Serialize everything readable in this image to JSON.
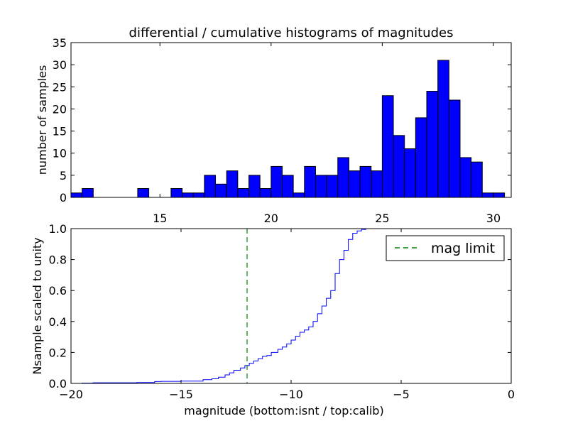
{
  "chart_data": [
    {
      "type": "bar",
      "title": "differential / cumulative histograms of magnitudes",
      "xlabel": "",
      "ylabel": "number of samples",
      "xlim": [
        11.0,
        30.8
      ],
      "ylim": [
        0,
        35
      ],
      "xticks": [
        15,
        20,
        25,
        30
      ],
      "yticks": [
        0,
        5,
        10,
        15,
        20,
        25,
        30,
        35
      ],
      "xaxis_side": "bottom",
      "bin_width": 0.5,
      "bins_start": [
        11.0,
        11.5,
        12.0,
        12.5,
        13.0,
        13.5,
        14.0,
        14.5,
        15.0,
        15.5,
        16.0,
        16.5,
        17.0,
        17.5,
        18.0,
        18.5,
        19.0,
        19.5,
        20.0,
        20.5,
        21.0,
        21.5,
        22.0,
        22.5,
        23.0,
        23.5,
        24.0,
        24.5,
        25.0,
        25.5,
        26.0,
        26.5,
        27.0,
        27.5,
        28.0,
        28.5,
        29.0,
        29.5,
        30.0
      ],
      "values": [
        1,
        2,
        0,
        0,
        0,
        0,
        2,
        0,
        0,
        2,
        1,
        1,
        5,
        3,
        6,
        2,
        5,
        2,
        7,
        5,
        1,
        7,
        5,
        5,
        9,
        6,
        7,
        6,
        23,
        14,
        11,
        18,
        24,
        31,
        22,
        9,
        8,
        1,
        1
      ],
      "bar_color": "#0000ff",
      "grid": false
    },
    {
      "type": "line",
      "step": true,
      "title": "",
      "xlabel": "magnitude (bottom:isnt / top:calib)",
      "ylabel": "Nsample scaled to unity",
      "xlim": [
        -20,
        0
      ],
      "ylim": [
        0.0,
        1.0
      ],
      "xticks": [
        -20,
        -15,
        -10,
        -5,
        0
      ],
      "xtick_labels": [
        "−20",
        "−15",
        "−10",
        "−5",
        "0"
      ],
      "yticks": [
        0.0,
        0.2,
        0.4,
        0.6,
        0.8,
        1.0
      ],
      "ytick_labels": [
        "0.0",
        "0.2",
        "0.4",
        "0.6",
        "0.8",
        "1.0"
      ],
      "series": [
        {
          "color": "#0000ff",
          "x": [
            -20.0,
            -19.5,
            -19.0,
            -18.0,
            -17.0,
            -16.2,
            -15.9,
            -15.0,
            -14.0,
            -13.6,
            -13.3,
            -13.0,
            -12.8,
            -12.6,
            -12.3,
            -12.1,
            -11.9,
            -11.7,
            -11.5,
            -11.3,
            -11.1,
            -10.9,
            -10.6,
            -10.4,
            -10.2,
            -10.0,
            -9.8,
            -9.6,
            -9.4,
            -9.2,
            -9.0,
            -8.8,
            -8.6,
            -8.4,
            -8.2,
            -8.0,
            -7.8,
            -7.6,
            -7.4,
            -7.2,
            -7.0,
            -6.8,
            -6.6,
            0.0
          ],
          "y": [
            0.0,
            0.002,
            0.004,
            0.004,
            0.006,
            0.012,
            0.013,
            0.015,
            0.024,
            0.03,
            0.04,
            0.055,
            0.068,
            0.085,
            0.1,
            0.115,
            0.13,
            0.145,
            0.16,
            0.175,
            0.18,
            0.2,
            0.22,
            0.235,
            0.255,
            0.28,
            0.305,
            0.33,
            0.345,
            0.365,
            0.4,
            0.45,
            0.5,
            0.55,
            0.6,
            0.71,
            0.8,
            0.86,
            0.93,
            0.97,
            0.985,
            0.995,
            1.0,
            1.0
          ]
        },
        {
          "name": "mag limit",
          "color": "#008000",
          "dash": true,
          "vertical_at": -12
        }
      ],
      "legend": "top-right",
      "grid": false
    }
  ],
  "top_axis": {
    "xticks": [
      15,
      20,
      25,
      30
    ]
  }
}
